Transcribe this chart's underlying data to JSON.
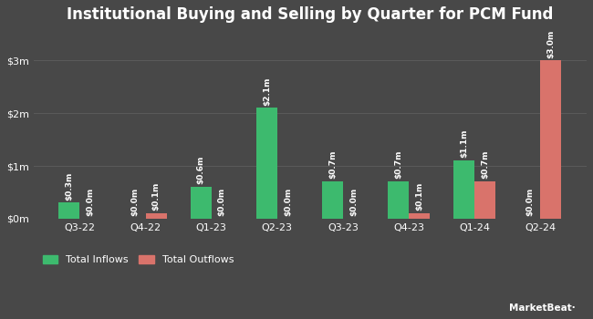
{
  "title": "Institutional Buying and Selling by Quarter for PCM Fund",
  "quarters": [
    "Q3-22",
    "Q4-22",
    "Q1-23",
    "Q2-23",
    "Q3-23",
    "Q4-23",
    "Q1-24",
    "Q2-24"
  ],
  "inflows": [
    0.3,
    0.0,
    0.6,
    2.1,
    0.7,
    0.7,
    1.1,
    0.0
  ],
  "outflows": [
    0.0,
    0.1,
    0.0,
    0.0,
    0.0,
    0.1,
    0.7,
    3.0
  ],
  "inflow_labels": [
    "$0.3m",
    "$0.0m",
    "$0.6m",
    "$2.1m",
    "$0.7m",
    "$0.7m",
    "$1.1m",
    "$0.0m"
  ],
  "outflow_labels": [
    "$0.0m",
    "$0.1m",
    "$0.0m",
    "$0.0m",
    "$0.0m",
    "$0.1m",
    "$0.7m",
    "$3.0m"
  ],
  "bar_color_inflow": "#3dba6e",
  "bar_color_outflow": "#d9736b",
  "background_color": "#484848",
  "plot_bg_color": "#484848",
  "text_color": "#ffffff",
  "grid_color": "#5a5a5a",
  "legend_inflow": "Total Inflows",
  "legend_outflow": "Total Outflows",
  "ylim": [
    0,
    3.5
  ],
  "yticks": [
    0,
    1,
    2,
    3
  ],
  "ytick_labels": [
    "$0m",
    "$1m",
    "$2m",
    "$3m"
  ],
  "label_fontsize": 6.5,
  "tick_fontsize": 8,
  "title_fontsize": 12
}
